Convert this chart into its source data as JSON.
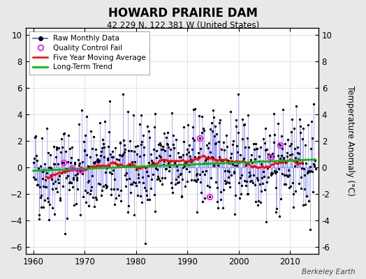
{
  "title": "HOWARD PRAIRIE DAM",
  "subtitle": "42.229 N, 122.381 W (United States)",
  "ylabel": "Temperature Anomaly (°C)",
  "credit": "Berkeley Earth",
  "xlim": [
    1958.5,
    2015.5
  ],
  "ylim": [
    -6.5,
    10.5
  ],
  "yticks": [
    -6,
    -4,
    -2,
    0,
    2,
    4,
    6,
    8,
    10
  ],
  "xticks": [
    1960,
    1970,
    1980,
    1990,
    2000,
    2010
  ],
  "seed": 42,
  "n_months": 660,
  "start_year": 1960.0,
  "bg_color": "#e8e8e8",
  "plot_bg_color": "#ffffff",
  "raw_line_color": "#5555ff",
  "raw_marker_color": "#000000",
  "moving_avg_color": "#ff0000",
  "trend_color": "#00bb00",
  "qc_fail_color": "#ff00ff",
  "legend_entries": [
    "Raw Monthly Data",
    "Quality Control Fail",
    "Five Year Moving Average",
    "Long-Term Trend"
  ]
}
